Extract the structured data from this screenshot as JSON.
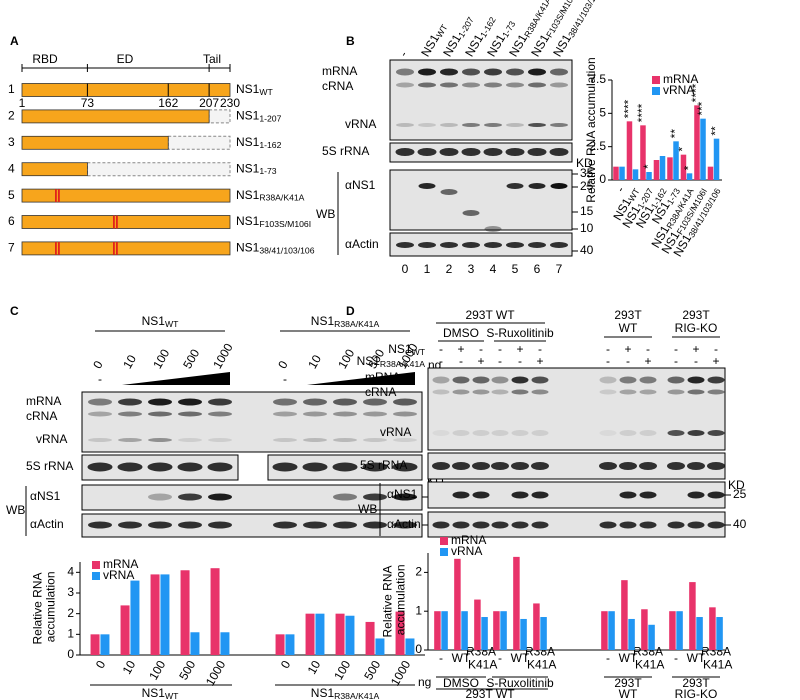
{
  "panel_labels": [
    "A",
    "B",
    "C",
    "D"
  ],
  "panel_a": {
    "domains": [
      "RBD",
      "ED",
      "Tail"
    ],
    "ticks": [
      1,
      73,
      162,
      207,
      230
    ],
    "rows": [
      {
        "number": 1,
        "name": "NS1WT"
      },
      {
        "number": 2,
        "name": "NS11-207"
      },
      {
        "number": 3,
        "name": "NS11-162"
      },
      {
        "number": 4,
        "name": "NS11-73"
      },
      {
        "number": 5,
        "name": "NS1R38A/K41A"
      },
      {
        "number": 6,
        "name": "NS1F103S/M106I"
      },
      {
        "number": 7,
        "name": "NS138/41/103/106"
      }
    ]
  },
  "panel_b": {
    "lanes": [
      "-",
      "NS1WT",
      "NS11-207",
      "NS11-162",
      "NS11-73",
      "NS1R38A/K41A",
      "NS1F103S/M106I",
      "NS138/41/103/106"
    ],
    "lane_numbers": [
      0,
      1,
      2,
      3,
      4,
      5,
      6,
      7
    ],
    "rna_labels": [
      "mRNA",
      "cRNA",
      "vRNA"
    ],
    "rrna_label": "5S rRNA",
    "wb_label": "WB",
    "antibodies": [
      "αNS1",
      "αActin"
    ],
    "kd_label": "KD",
    "markers": [
      35,
      25,
      15,
      10,
      40
    ]
  },
  "panel_c": {
    "groups": [
      "NS1WT",
      "NS1R38A/K41A"
    ],
    "doses": [
      "0",
      "10",
      "100",
      "500",
      "1000"
    ],
    "unit": "ng",
    "minus": "-",
    "rna_labels": [
      "mRNA",
      "cRNA",
      "vRNA"
    ],
    "rrna_label": "5S rRNA",
    "wb_label": "WB",
    "antibodies": [
      "αNS1",
      "αActin"
    ],
    "kd_label": "KD",
    "markers": [
      25,
      40
    ]
  },
  "panel_d": {
    "header": "293T WT",
    "treatments": [
      "DMSO",
      "S-Ruxolitinib"
    ],
    "cells": [
      [
        "293T",
        "WT"
      ],
      [
        "293T",
        "RIG-KO"
      ]
    ],
    "row_labels": [
      "NS1WT",
      "NS1R38A/K41A"
    ],
    "matrix": [
      [
        "-",
        "+",
        "-",
        "-",
        "+",
        "-",
        "-",
        "+",
        "-",
        "-",
        "+",
        "-"
      ],
      [
        "-",
        "-",
        "+",
        "-",
        "-",
        "+",
        "-",
        "-",
        "+",
        "-",
        "-",
        "+"
      ]
    ],
    "rna_labels": [
      "mRNA",
      "cRNA",
      "vRNA"
    ],
    "rrna_label": "5S rRNA",
    "wb_label": "WB",
    "antibodies": [
      "αNS1",
      "αActin"
    ],
    "kd_label": "KD",
    "markers": [
      25,
      40
    ]
  },
  "chart_data": [
    {
      "type": "bar",
      "y_label": "Relative RNA accumulation",
      "categories": [
        "-",
        "NS1WT",
        "NS11-207",
        "NS11-162",
        "NS11-73",
        "NS1R38A/K41A",
        "NS1F103S/M106I",
        "NS138/41/103/106"
      ],
      "series": [
        {
          "name": "mRNA",
          "color": "#e8336a",
          "values": [
            1,
            4.4,
            4.1,
            1.5,
            1.7,
            1.9,
            5.6,
            1.0
          ],
          "significance": [
            null,
            "****",
            "****",
            null,
            null,
            "*",
            "****",
            null
          ]
        },
        {
          "name": "vRNA",
          "color": "#2196f3",
          "values": [
            1,
            0.8,
            0.6,
            1.8,
            2.9,
            0.5,
            4.6,
            3.1
          ],
          "significance": [
            null,
            null,
            "*",
            null,
            "**",
            "*",
            "***",
            "**"
          ]
        }
      ],
      "ylim": [
        0,
        7.5
      ],
      "yticks": [
        0,
        2.5,
        5,
        7.5
      ],
      "legend": "top-right"
    },
    {
      "type": "bar",
      "y_label": "Relative RNA accumulation",
      "categories": [
        "0",
        "10",
        "100",
        "500",
        "1000",
        "0",
        "10",
        "100",
        "500",
        "1000"
      ],
      "x_unit": "ng",
      "groups": [
        "NS1WT",
        "NS1R38A/K41A"
      ],
      "series": [
        {
          "name": "mRNA",
          "color": "#e8336a",
          "values": [
            1,
            2.4,
            3.9,
            4.1,
            4.2,
            1,
            2,
            2,
            1.6,
            2.1
          ]
        },
        {
          "name": "vRNA",
          "color": "#2196f3",
          "values": [
            1,
            3.6,
            3.9,
            1.1,
            1.1,
            1,
            2,
            1.9,
            0.8,
            0.8
          ]
        }
      ],
      "ylim": [
        0,
        4.5
      ],
      "yticks": [
        0,
        1,
        2,
        3,
        4
      ],
      "legend": "top-left"
    },
    {
      "type": "bar",
      "y_label": "Relative RNA accumulation",
      "categories": [
        "-",
        "WT",
        "R38A K41A",
        "-",
        "WT",
        "R38A K41A",
        "-",
        "WT",
        "R38A K41A",
        "-",
        "WT",
        "R38A K41A"
      ],
      "groups": [
        "DMSO",
        "S-Ruxolitinib"
      ],
      "supergroup": "293T WT",
      "cell_groups": [
        [
          "293T",
          "WT"
        ],
        [
          "293T",
          "RIG-KO"
        ]
      ],
      "series": [
        {
          "name": "mRNA",
          "color": "#e8336a",
          "values": [
            1,
            2.35,
            1.3,
            1,
            2.4,
            1.2,
            1,
            1.8,
            1.05,
            1,
            1.75,
            1.1
          ]
        },
        {
          "name": "vRNA",
          "color": "#2196f3",
          "values": [
            1,
            1,
            0.85,
            1,
            0.8,
            0.85,
            1,
            0.8,
            0.65,
            1,
            0.85,
            0.85
          ]
        }
      ],
      "ylim": [
        0,
        2.5
      ],
      "yticks": [
        0,
        1,
        2
      ],
      "legend": "top-left"
    }
  ]
}
